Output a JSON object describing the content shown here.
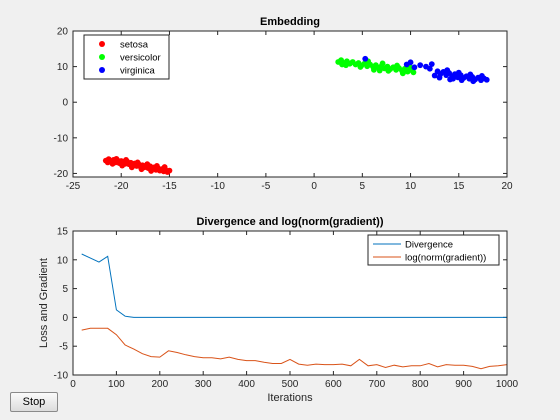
{
  "chart_data": [
    {
      "type": "scatter",
      "title": "Embedding",
      "xlabel": "",
      "ylabel": "",
      "xlim": [
        -25,
        20
      ],
      "ylim": [
        -21,
        20
      ],
      "xticks": [
        -25,
        -20,
        -15,
        -10,
        -5,
        0,
        5,
        10,
        15,
        20
      ],
      "yticks": [
        -20,
        -10,
        0,
        10,
        20
      ],
      "legend_position": "top-left",
      "series": [
        {
          "name": "setosa",
          "color": "#ff0000",
          "points": [
            [
              -21.6,
              -16.4
            ],
            [
              -21.3,
              -16.0
            ],
            [
              -21.0,
              -16.6
            ],
            [
              -20.8,
              -16.2
            ],
            [
              -20.6,
              -16.9
            ],
            [
              -20.4,
              -16.3
            ],
            [
              -20.2,
              -17.1
            ],
            [
              -20.0,
              -16.5
            ],
            [
              -19.8,
              -16.8
            ],
            [
              -19.6,
              -17.3
            ],
            [
              -19.4,
              -16.6
            ],
            [
              -19.2,
              -17.4
            ],
            [
              -19.0,
              -17.0
            ],
            [
              -18.8,
              -17.6
            ],
            [
              -18.6,
              -17.2
            ],
            [
              -18.4,
              -17.9
            ],
            [
              -18.2,
              -17.4
            ],
            [
              -18.0,
              -18.1
            ],
            [
              -17.8,
              -17.7
            ],
            [
              -17.6,
              -18.3
            ],
            [
              -17.4,
              -17.8
            ],
            [
              -17.2,
              -18.5
            ],
            [
              -17.0,
              -18.0
            ],
            [
              -16.8,
              -18.7
            ],
            [
              -16.6,
              -18.3
            ],
            [
              -16.4,
              -19.0
            ],
            [
              -16.2,
              -18.5
            ],
            [
              -16.0,
              -19.2
            ],
            [
              -15.8,
              -18.8
            ],
            [
              -15.6,
              -19.4
            ],
            [
              -15.4,
              -19.0
            ],
            [
              -15.2,
              -19.6
            ],
            [
              -15.0,
              -19.2
            ],
            [
              -20.9,
              -17.3
            ],
            [
              -19.9,
              -17.8
            ],
            [
              -18.9,
              -18.3
            ],
            [
              -17.9,
              -18.8
            ],
            [
              -16.9,
              -19.3
            ],
            [
              -21.4,
              -16.9
            ],
            [
              -18.3,
              -16.9
            ],
            [
              -17.3,
              -17.4
            ],
            [
              -16.3,
              -17.9
            ],
            [
              -20.5,
              -15.9
            ],
            [
              -19.5,
              -16.2
            ],
            [
              -15.5,
              -18.2
            ]
          ]
        },
        {
          "name": "versicolor",
          "color": "#00ff00",
          "points": [
            [
              2.5,
              11.3
            ],
            [
              2.8,
              11.8
            ],
            [
              3.1,
              11.0
            ],
            [
              3.4,
              11.5
            ],
            [
              3.7,
              10.8
            ],
            [
              4.0,
              11.3
            ],
            [
              4.3,
              10.6
            ],
            [
              4.6,
              11.0
            ],
            [
              4.9,
              10.3
            ],
            [
              5.2,
              10.8
            ],
            [
              5.5,
              10.1
            ],
            [
              5.8,
              10.6
            ],
            [
              6.1,
              10.0
            ],
            [
              6.4,
              10.4
            ],
            [
              6.7,
              9.7
            ],
            [
              7.0,
              10.2
            ],
            [
              7.3,
              9.5
            ],
            [
              7.6,
              10.0
            ],
            [
              7.9,
              9.3
            ],
            [
              8.2,
              9.8
            ],
            [
              8.5,
              9.1
            ],
            [
              8.8,
              9.6
            ],
            [
              9.1,
              8.9
            ],
            [
              9.4,
              9.4
            ],
            [
              9.7,
              8.6
            ],
            [
              10.0,
              9.1
            ],
            [
              3.3,
              10.4
            ],
            [
              4.8,
              9.9
            ],
            [
              6.2,
              9.1
            ],
            [
              7.7,
              8.8
            ],
            [
              9.2,
              8.1
            ],
            [
              5.6,
              11.5
            ],
            [
              7.1,
              10.9
            ],
            [
              8.6,
              10.3
            ],
            [
              10.3,
              8.4
            ],
            [
              2.9,
              10.6
            ],
            [
              6.8,
              8.9
            ],
            [
              9.9,
              10.0
            ]
          ]
        },
        {
          "name": "virginica",
          "color": "#0000ff",
          "points": [
            [
              5.3,
              12.2
            ],
            [
              9.6,
              10.6
            ],
            [
              10.0,
              11.2
            ],
            [
              10.4,
              9.8
            ],
            [
              11.0,
              10.4
            ],
            [
              11.6,
              10.0
            ],
            [
              12.2,
              10.7
            ],
            [
              12.8,
              8.7
            ],
            [
              13.1,
              7.9
            ],
            [
              13.4,
              8.5
            ],
            [
              13.7,
              7.6
            ],
            [
              14.0,
              8.2
            ],
            [
              14.3,
              7.3
            ],
            [
              14.6,
              7.9
            ],
            [
              14.9,
              7.0
            ],
            [
              15.2,
              7.6
            ],
            [
              15.5,
              6.8
            ],
            [
              15.8,
              7.3
            ],
            [
              16.1,
              6.6
            ],
            [
              16.4,
              7.1
            ],
            [
              16.7,
              6.4
            ],
            [
              17.0,
              6.9
            ],
            [
              17.3,
              6.2
            ],
            [
              17.6,
              6.7
            ],
            [
              17.9,
              6.3
            ],
            [
              13.0,
              6.9
            ],
            [
              14.1,
              6.4
            ],
            [
              15.3,
              6.2
            ],
            [
              16.5,
              5.9
            ],
            [
              12.5,
              7.5
            ],
            [
              13.8,
              9.0
            ],
            [
              15.0,
              8.3
            ],
            [
              16.2,
              7.8
            ],
            [
              17.4,
              7.4
            ],
            [
              12.0,
              9.4
            ],
            [
              14.4,
              6.6
            ]
          ]
        }
      ]
    },
    {
      "type": "line",
      "title": "Divergence and log(norm(gradient))",
      "xlabel": "Iterations",
      "ylabel": "Loss and Gradient",
      "xlim": [
        0,
        1000
      ],
      "ylim": [
        -10,
        15
      ],
      "xticks": [
        0,
        100,
        200,
        300,
        400,
        500,
        600,
        700,
        800,
        900,
        1000
      ],
      "yticks": [
        -10,
        -5,
        0,
        5,
        10,
        15
      ],
      "legend_position": "top-right",
      "series": [
        {
          "name": "Divergence",
          "color": "#0072bd",
          "x": [
            20,
            40,
            60,
            80,
            100,
            120,
            140,
            160,
            1000
          ],
          "y": [
            11.0,
            10.3,
            9.6,
            10.6,
            1.3,
            0.2,
            0.0,
            0.0,
            0.0
          ]
        },
        {
          "name": "log(norm(gradient))",
          "color": "#d95319",
          "x": [
            20,
            40,
            60,
            80,
            100,
            120,
            140,
            160,
            180,
            200,
            220,
            240,
            260,
            280,
            300,
            320,
            340,
            360,
            380,
            400,
            420,
            440,
            460,
            480,
            500,
            520,
            540,
            560,
            580,
            600,
            620,
            640,
            660,
            680,
            700,
            720,
            740,
            760,
            780,
            800,
            820,
            840,
            860,
            880,
            900,
            920,
            940,
            960,
            980,
            1000
          ],
          "y": [
            -2.2,
            -1.9,
            -1.9,
            -1.9,
            -3.0,
            -4.8,
            -5.5,
            -6.3,
            -6.8,
            -6.9,
            -5.8,
            -6.1,
            -6.5,
            -6.8,
            -7.0,
            -7.0,
            -7.2,
            -6.9,
            -7.3,
            -7.5,
            -7.5,
            -7.8,
            -8.0,
            -8.0,
            -7.3,
            -8.1,
            -8.3,
            -8.1,
            -8.2,
            -8.2,
            -8.1,
            -8.4,
            -7.3,
            -8.4,
            -8.2,
            -8.7,
            -8.3,
            -8.6,
            -8.4,
            -8.4,
            -8.0,
            -8.6,
            -8.2,
            -8.3,
            -8.3,
            -8.5,
            -8.9,
            -8.5,
            -8.4,
            -8.2
          ]
        }
      ]
    }
  ],
  "controls": {
    "stop_label": "Stop"
  }
}
